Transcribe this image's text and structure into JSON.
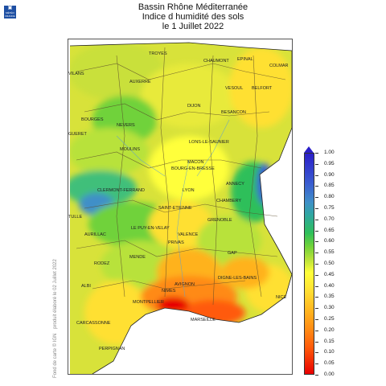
{
  "header": {
    "line1": "Bassin Rhône Méditerranée",
    "line2": "Indice d humidité des sols",
    "line3": "le 1 Juillet 2022"
  },
  "logo": {
    "text": "MÉTÉO FRANCE",
    "icon": "meteo-france-logo"
  },
  "side_text": {
    "produit": "produit élaboré le 02 Juillet 2022",
    "fond": "Fond de carte © IGN"
  },
  "colorbar": {
    "labels": [
      "1.00",
      "0.95",
      "0.90",
      "0.85",
      "0.80",
      "0.75",
      "0.70",
      "0.65",
      "0.60",
      "0.55",
      "0.50",
      "0.45",
      "0.40",
      "0.35",
      "0.30",
      "0.25",
      "0.20",
      "0.15",
      "0.10",
      "0.05",
      "0.00"
    ]
  },
  "places": [
    "TROYES",
    "CHAUMONT",
    "EPINAL",
    "COLMAR",
    "VILANS",
    "AUXERRE",
    "VESOUL",
    "BELFORT",
    "DIJON",
    "BESANCON",
    "BOURGES",
    "NEVERS",
    "MOULINS",
    "LONS-LE-SAUNIER",
    "GUERET",
    "MACON",
    "BOURG-EN-BRESSE",
    "ANNECY",
    "CLERMONT-FERRAND",
    "LYON",
    "CHAMBERY",
    "LE PUY-EN-VELAY",
    "SAINT-ETIENNE",
    "GRENOBLE",
    "AURILLAC",
    "VALENCE",
    "TULLE",
    "PRIVAS",
    "GAP",
    "RODEZ",
    "MENDE",
    "DIGNE-LES-BAINS",
    "ALBI",
    "AVIGNON",
    "NIMES",
    "MONTPELLIER",
    "MARSEILLE",
    "NICE",
    "CARCASSONNE",
    "PERPIGNAN"
  ]
}
